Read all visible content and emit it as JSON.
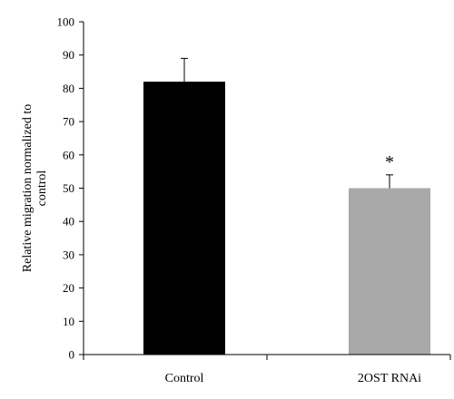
{
  "chart_data": {
    "type": "bar",
    "categories": [
      "Control",
      "2OST RNAi"
    ],
    "values": [
      82,
      50
    ],
    "errors": [
      7,
      4
    ],
    "colors": [
      "#000000",
      "#a9a9a9"
    ],
    "annotations": [
      "",
      "*"
    ],
    "ylabel_lines": [
      "Relative migration normalized to",
      "control"
    ],
    "ylim": [
      0,
      100
    ],
    "yticks": [
      0,
      10,
      20,
      30,
      40,
      50,
      60,
      70,
      80,
      90,
      100
    ],
    "grid": false,
    "legend": "none"
  }
}
